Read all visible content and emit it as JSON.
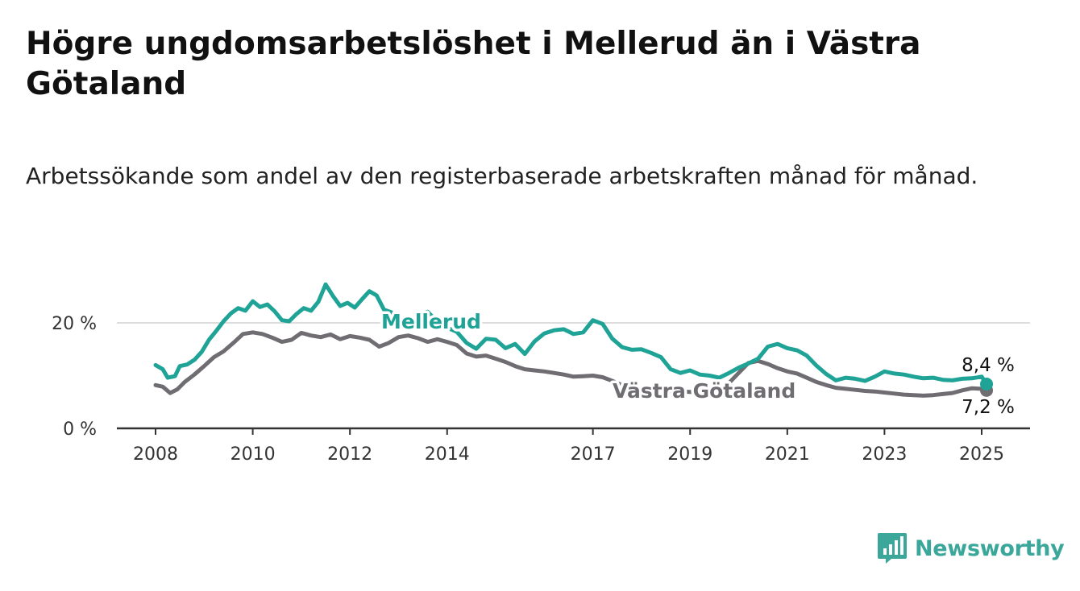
{
  "title": "Högre ungdomsarbetslöshet i Mellerud än i Västra Götaland",
  "subtitle": "Arbetssökande som andel av den registerbaserade arbetskraften månad för månad.",
  "brand": {
    "name": "Newsworthy",
    "color": "#3aa79a",
    "icon": "newsworthy-logo-icon"
  },
  "colors": {
    "mellerud": "#1ea396",
    "vastra": "#6f6d72",
    "grid": "#dddddd",
    "axis": "#333333"
  },
  "chart_data": {
    "type": "line",
    "title": "Högre ungdomsarbetslöshet i Mellerud än i Västra Götaland",
    "subtitle": "Arbetssökande som andel av den registerbaserade arbetskraften månad för månad.",
    "xlabel": "",
    "ylabel": "",
    "x_ticks": [
      "2008",
      "2010",
      "2012",
      "2014",
      "2017",
      "2019",
      "2021",
      "2023",
      "2025"
    ],
    "y_ticks": [
      "0 %",
      "20 %"
    ],
    "ylim": [
      0,
      30
    ],
    "xlim": [
      2007.6,
      2026.0
    ],
    "grid": "horizontal",
    "series": [
      {
        "name": "Mellerud",
        "end_label": "8,4 %",
        "color": "#1ea396",
        "points": [
          [
            2008.0,
            12.0
          ],
          [
            2008.15,
            11.2
          ],
          [
            2008.25,
            9.6
          ],
          [
            2008.4,
            9.9
          ],
          [
            2008.5,
            11.8
          ],
          [
            2008.65,
            12.1
          ],
          [
            2008.8,
            13.0
          ],
          [
            2008.95,
            14.5
          ],
          [
            2009.1,
            16.8
          ],
          [
            2009.25,
            18.5
          ],
          [
            2009.4,
            20.3
          ],
          [
            2009.55,
            21.8
          ],
          [
            2009.7,
            22.8
          ],
          [
            2009.85,
            22.3
          ],
          [
            2010.0,
            24.1
          ],
          [
            2010.15,
            23.0
          ],
          [
            2010.3,
            23.5
          ],
          [
            2010.45,
            22.2
          ],
          [
            2010.6,
            20.5
          ],
          [
            2010.75,
            20.3
          ],
          [
            2010.9,
            21.7
          ],
          [
            2011.05,
            22.8
          ],
          [
            2011.2,
            22.3
          ],
          [
            2011.35,
            24.0
          ],
          [
            2011.5,
            27.3
          ],
          [
            2011.65,
            25.1
          ],
          [
            2011.8,
            23.2
          ],
          [
            2011.95,
            23.8
          ],
          [
            2012.1,
            22.9
          ],
          [
            2012.25,
            24.5
          ],
          [
            2012.4,
            26.0
          ],
          [
            2012.55,
            25.2
          ],
          [
            2012.7,
            22.5
          ],
          [
            2012.85,
            22.0
          ],
          [
            2013.0,
            20.5
          ],
          [
            2013.2,
            19.2
          ],
          [
            2013.4,
            21.7
          ],
          [
            2013.6,
            22.1
          ],
          [
            2013.8,
            20.2
          ],
          [
            2014.0,
            19.1
          ],
          [
            2014.2,
            18.3
          ],
          [
            2014.4,
            16.2
          ],
          [
            2014.6,
            15.1
          ],
          [
            2014.8,
            17.0
          ],
          [
            2015.0,
            16.8
          ],
          [
            2015.2,
            15.2
          ],
          [
            2015.4,
            16.0
          ],
          [
            2015.6,
            14.1
          ],
          [
            2015.8,
            16.5
          ],
          [
            2016.0,
            18.0
          ],
          [
            2016.2,
            18.6
          ],
          [
            2016.4,
            18.8
          ],
          [
            2016.6,
            17.9
          ],
          [
            2016.8,
            18.2
          ],
          [
            2017.0,
            20.5
          ],
          [
            2017.2,
            19.8
          ],
          [
            2017.4,
            17.0
          ],
          [
            2017.6,
            15.4
          ],
          [
            2017.8,
            14.9
          ],
          [
            2018.0,
            15.0
          ],
          [
            2018.2,
            14.3
          ],
          [
            2018.4,
            13.5
          ],
          [
            2018.6,
            11.2
          ],
          [
            2018.8,
            10.5
          ],
          [
            2019.0,
            11.0
          ],
          [
            2019.2,
            10.2
          ],
          [
            2019.4,
            10.0
          ],
          [
            2019.6,
            9.6
          ],
          [
            2019.8,
            10.5
          ],
          [
            2020.0,
            11.5
          ],
          [
            2020.2,
            12.3
          ],
          [
            2020.4,
            13.2
          ],
          [
            2020.6,
            15.5
          ],
          [
            2020.8,
            16.0
          ],
          [
            2021.0,
            15.2
          ],
          [
            2021.2,
            14.8
          ],
          [
            2021.4,
            13.8
          ],
          [
            2021.6,
            11.9
          ],
          [
            2021.8,
            10.3
          ],
          [
            2022.0,
            9.1
          ],
          [
            2022.2,
            9.6
          ],
          [
            2022.4,
            9.4
          ],
          [
            2022.6,
            9.0
          ],
          [
            2022.8,
            9.8
          ],
          [
            2023.0,
            10.8
          ],
          [
            2023.2,
            10.4
          ],
          [
            2023.4,
            10.2
          ],
          [
            2023.6,
            9.8
          ],
          [
            2023.8,
            9.5
          ],
          [
            2024.0,
            9.6
          ],
          [
            2024.2,
            9.2
          ],
          [
            2024.4,
            9.1
          ],
          [
            2024.6,
            9.4
          ],
          [
            2024.8,
            9.5
          ],
          [
            2025.0,
            9.8
          ],
          [
            2025.1,
            8.4
          ]
        ]
      },
      {
        "name": "Västra Götaland",
        "end_label": "7,2 %",
        "color": "#6f6d72",
        "points": [
          [
            2008.0,
            8.2
          ],
          [
            2008.15,
            7.9
          ],
          [
            2008.3,
            6.7
          ],
          [
            2008.45,
            7.4
          ],
          [
            2008.6,
            8.8
          ],
          [
            2008.8,
            10.2
          ],
          [
            2009.0,
            11.8
          ],
          [
            2009.2,
            13.5
          ],
          [
            2009.4,
            14.6
          ],
          [
            2009.6,
            16.2
          ],
          [
            2009.8,
            17.9
          ],
          [
            2010.0,
            18.2
          ],
          [
            2010.2,
            17.9
          ],
          [
            2010.4,
            17.2
          ],
          [
            2010.6,
            16.4
          ],
          [
            2010.8,
            16.8
          ],
          [
            2011.0,
            18.1
          ],
          [
            2011.2,
            17.6
          ],
          [
            2011.4,
            17.3
          ],
          [
            2011.6,
            17.8
          ],
          [
            2011.8,
            16.9
          ],
          [
            2012.0,
            17.5
          ],
          [
            2012.2,
            17.2
          ],
          [
            2012.4,
            16.8
          ],
          [
            2012.6,
            15.5
          ],
          [
            2012.8,
            16.2
          ],
          [
            2013.0,
            17.3
          ],
          [
            2013.2,
            17.6
          ],
          [
            2013.4,
            17.1
          ],
          [
            2013.6,
            16.4
          ],
          [
            2013.8,
            16.9
          ],
          [
            2014.0,
            16.4
          ],
          [
            2014.2,
            15.8
          ],
          [
            2014.4,
            14.2
          ],
          [
            2014.6,
            13.6
          ],
          [
            2014.8,
            13.8
          ],
          [
            2015.0,
            13.2
          ],
          [
            2015.2,
            12.6
          ],
          [
            2015.4,
            11.8
          ],
          [
            2015.6,
            11.2
          ],
          [
            2015.8,
            11.0
          ],
          [
            2016.0,
            10.8
          ],
          [
            2016.2,
            10.5
          ],
          [
            2016.4,
            10.2
          ],
          [
            2016.6,
            9.8
          ],
          [
            2016.8,
            9.9
          ],
          [
            2017.0,
            10.0
          ],
          [
            2017.2,
            9.7
          ],
          [
            2017.4,
            9.0
          ],
          [
            2017.6,
            8.2
          ],
          [
            2017.8,
            7.8
          ],
          [
            2018.0,
            7.5
          ],
          [
            2018.2,
            7.4
          ],
          [
            2018.4,
            7.3
          ],
          [
            2018.6,
            7.0
          ],
          [
            2018.8,
            7.0
          ],
          [
            2019.0,
            6.9
          ],
          [
            2019.2,
            6.9
          ],
          [
            2019.4,
            7.0
          ],
          [
            2019.6,
            7.4
          ],
          [
            2019.8,
            8.6
          ],
          [
            2020.0,
            10.5
          ],
          [
            2020.2,
            12.4
          ],
          [
            2020.4,
            12.8
          ],
          [
            2020.6,
            12.2
          ],
          [
            2020.8,
            11.4
          ],
          [
            2021.0,
            10.8
          ],
          [
            2021.2,
            10.4
          ],
          [
            2021.4,
            9.6
          ],
          [
            2021.6,
            8.8
          ],
          [
            2021.8,
            8.2
          ],
          [
            2022.0,
            7.7
          ],
          [
            2022.2,
            7.5
          ],
          [
            2022.4,
            7.3
          ],
          [
            2022.6,
            7.1
          ],
          [
            2022.8,
            7.0
          ],
          [
            2023.0,
            6.8
          ],
          [
            2023.2,
            6.6
          ],
          [
            2023.4,
            6.4
          ],
          [
            2023.6,
            6.3
          ],
          [
            2023.8,
            6.2
          ],
          [
            2024.0,
            6.3
          ],
          [
            2024.2,
            6.5
          ],
          [
            2024.4,
            6.7
          ],
          [
            2024.6,
            7.2
          ],
          [
            2024.8,
            7.6
          ],
          [
            2025.0,
            7.5
          ],
          [
            2025.1,
            7.2
          ]
        ]
      }
    ]
  }
}
